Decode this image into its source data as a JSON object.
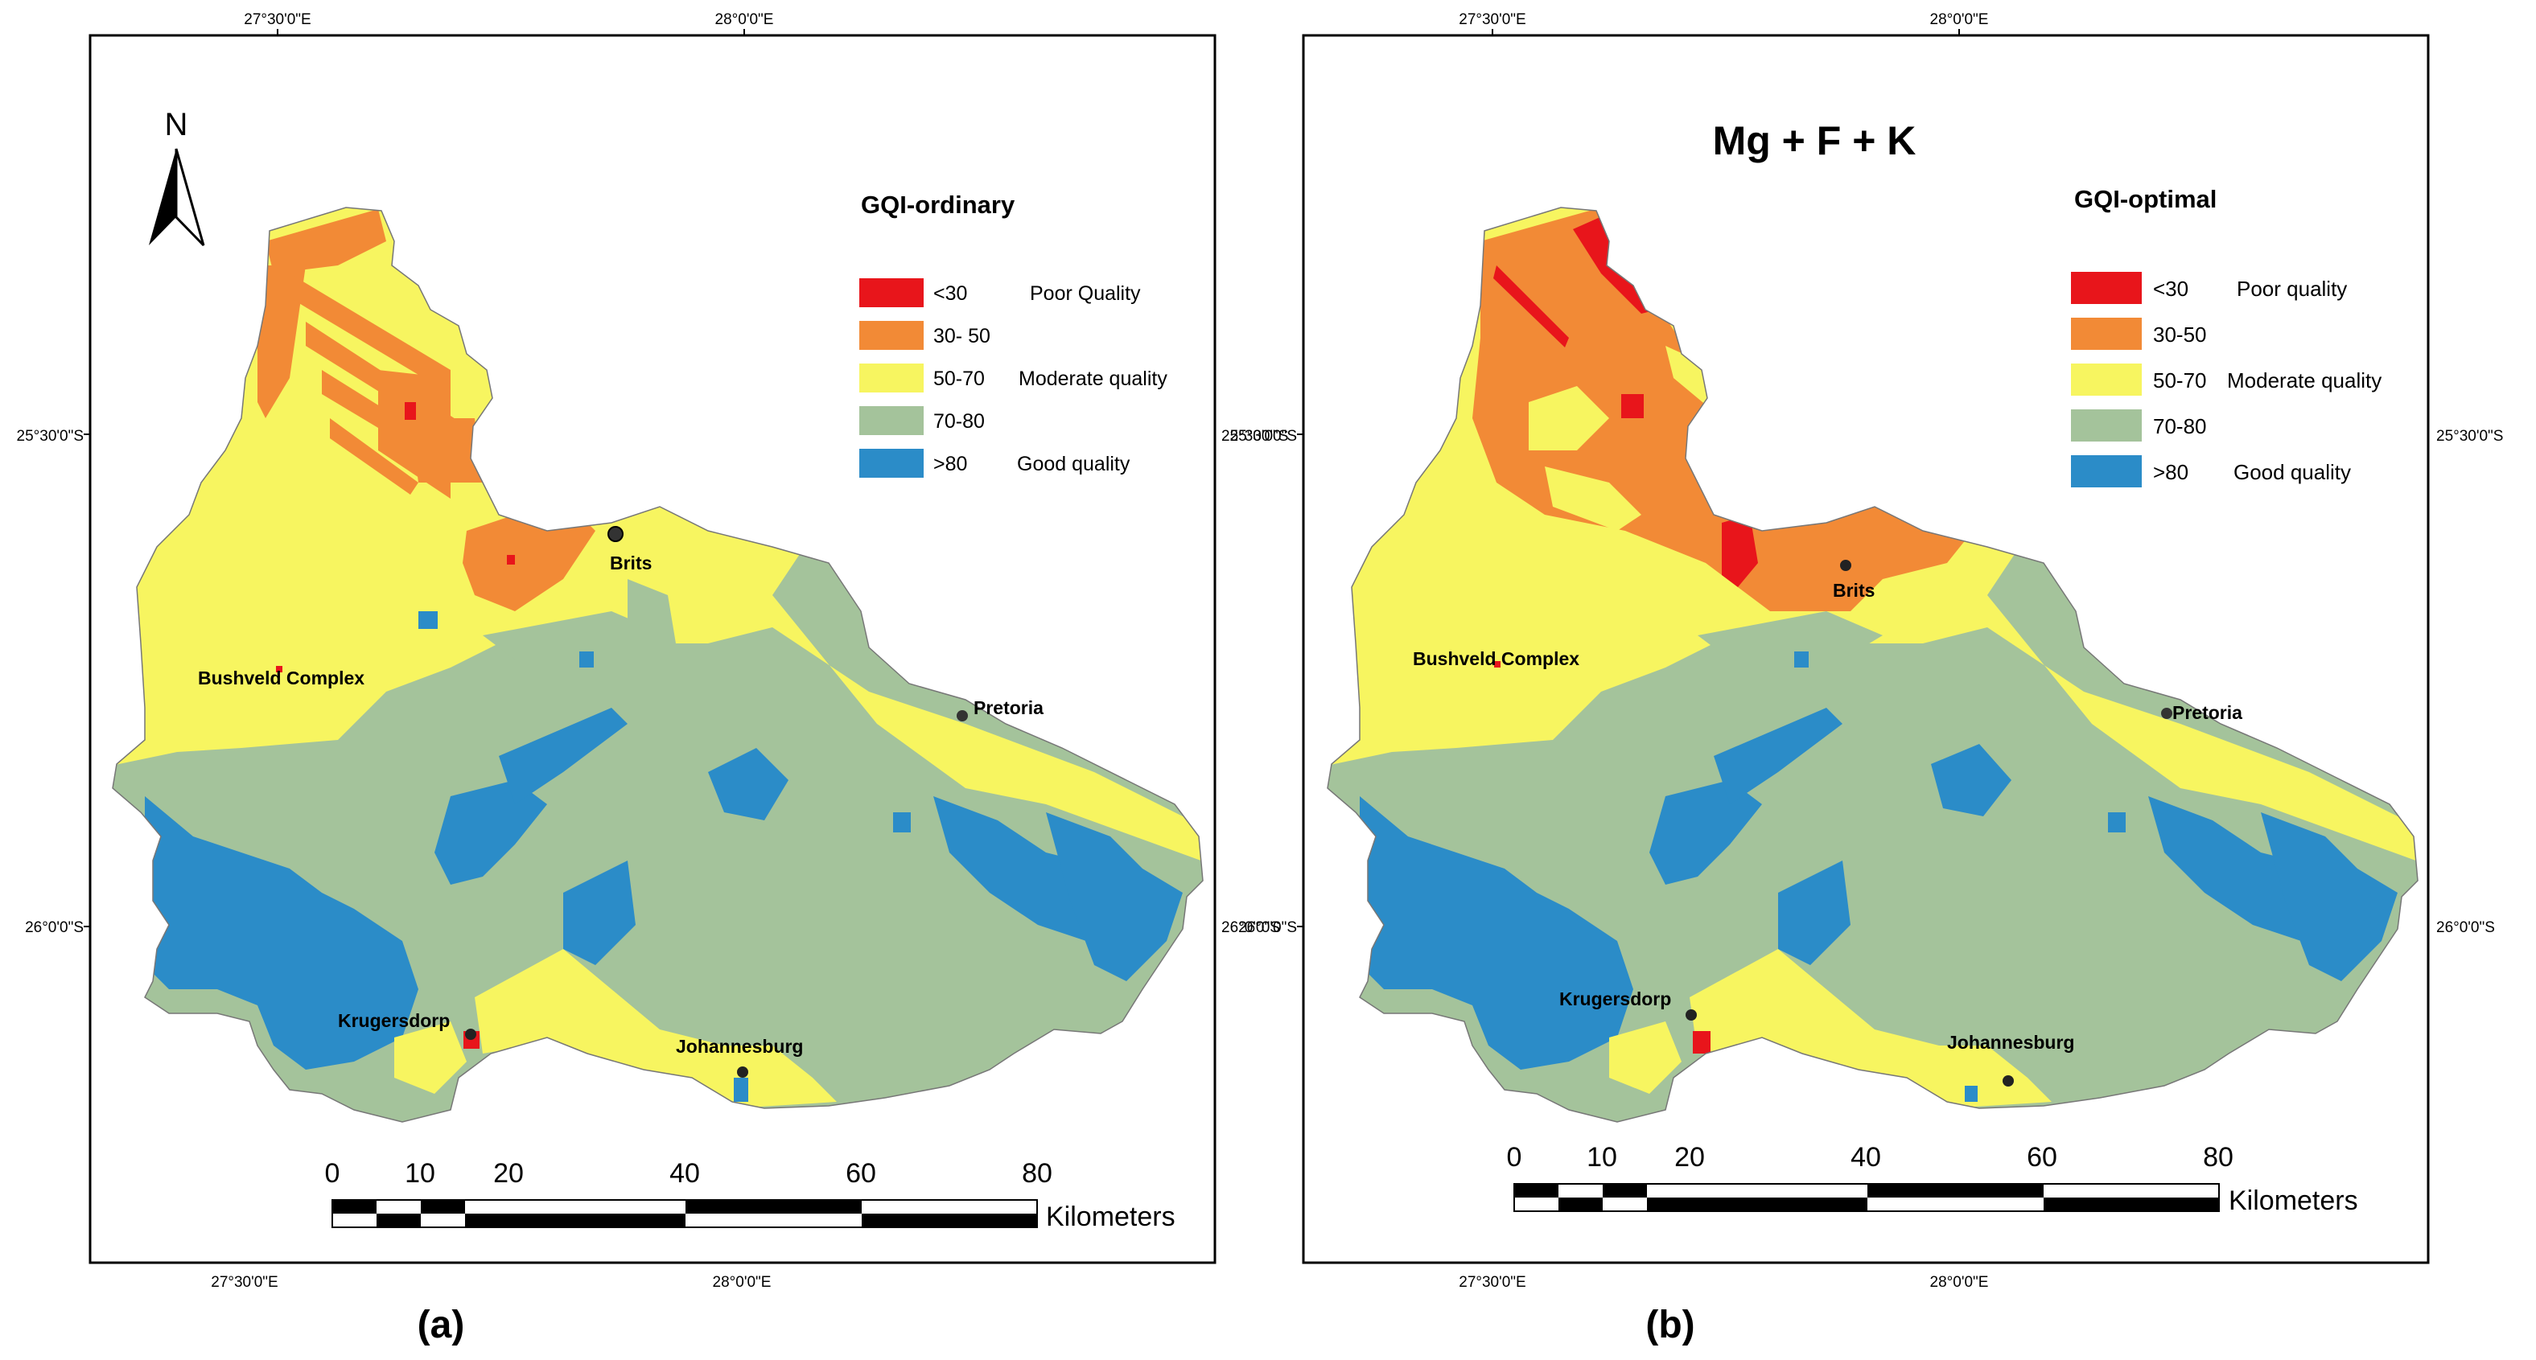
{
  "colors": {
    "poor": "#e8151b",
    "low": "#f28a36",
    "moderate": "#f7f560",
    "high": "#a4c39b",
    "good": "#2b8cc8",
    "frame": "#000000",
    "background": "#ffffff"
  },
  "coordinates": {
    "lon_left": "27°30'0\"E",
    "lon_right": "28°0'0\"E",
    "lat_top": "25°30'0\"S",
    "lat_bottom": "26°0'0\"S"
  },
  "panels": [
    {
      "id": "a",
      "caption": "(a)",
      "title": "",
      "legend_title": "GQI-ordinary",
      "legend": [
        {
          "range": "<30",
          "label": "Poor Quality",
          "color_key": "poor"
        },
        {
          "range": "30- 50",
          "label": "",
          "color_key": "low"
        },
        {
          "range": "50-70",
          "label": "Moderate quality",
          "color_key": "moderate"
        },
        {
          "range": "70-80",
          "label": "",
          "color_key": "high"
        },
        {
          "range": ">80",
          "label": "Good quality",
          "color_key": "good"
        }
      ],
      "places": [
        "Brits",
        "Bushveld Complex",
        "Pretoria",
        "Krugersdorp",
        "Johannesburg"
      ],
      "north_label": "N",
      "scale": {
        "ticks": [
          "0",
          "10",
          "20",
          "40",
          "60",
          "80"
        ],
        "unit": "Kilometers"
      }
    },
    {
      "id": "b",
      "caption": "(b)",
      "title": "Mg + F + K",
      "legend_title": "GQI-optimal",
      "legend": [
        {
          "range": "<30",
          "label": "Poor quality",
          "color_key": "poor"
        },
        {
          "range": "30-50",
          "label": "",
          "color_key": "low"
        },
        {
          "range": "50-70",
          "label": "Moderate quality",
          "color_key": "moderate"
        },
        {
          "range": "70-80",
          "label": "",
          "color_key": "high"
        },
        {
          "range": ">80",
          "label": "Good quality",
          "color_key": "good"
        }
      ],
      "places": [
        "Brits",
        "Bushveld Complex",
        "Pretoria",
        "Krugersdorp",
        "Johannesburg"
      ],
      "scale": {
        "ticks": [
          "0",
          "10",
          "20",
          "40",
          "60",
          "80"
        ],
        "unit": "Kilometers"
      }
    }
  ]
}
